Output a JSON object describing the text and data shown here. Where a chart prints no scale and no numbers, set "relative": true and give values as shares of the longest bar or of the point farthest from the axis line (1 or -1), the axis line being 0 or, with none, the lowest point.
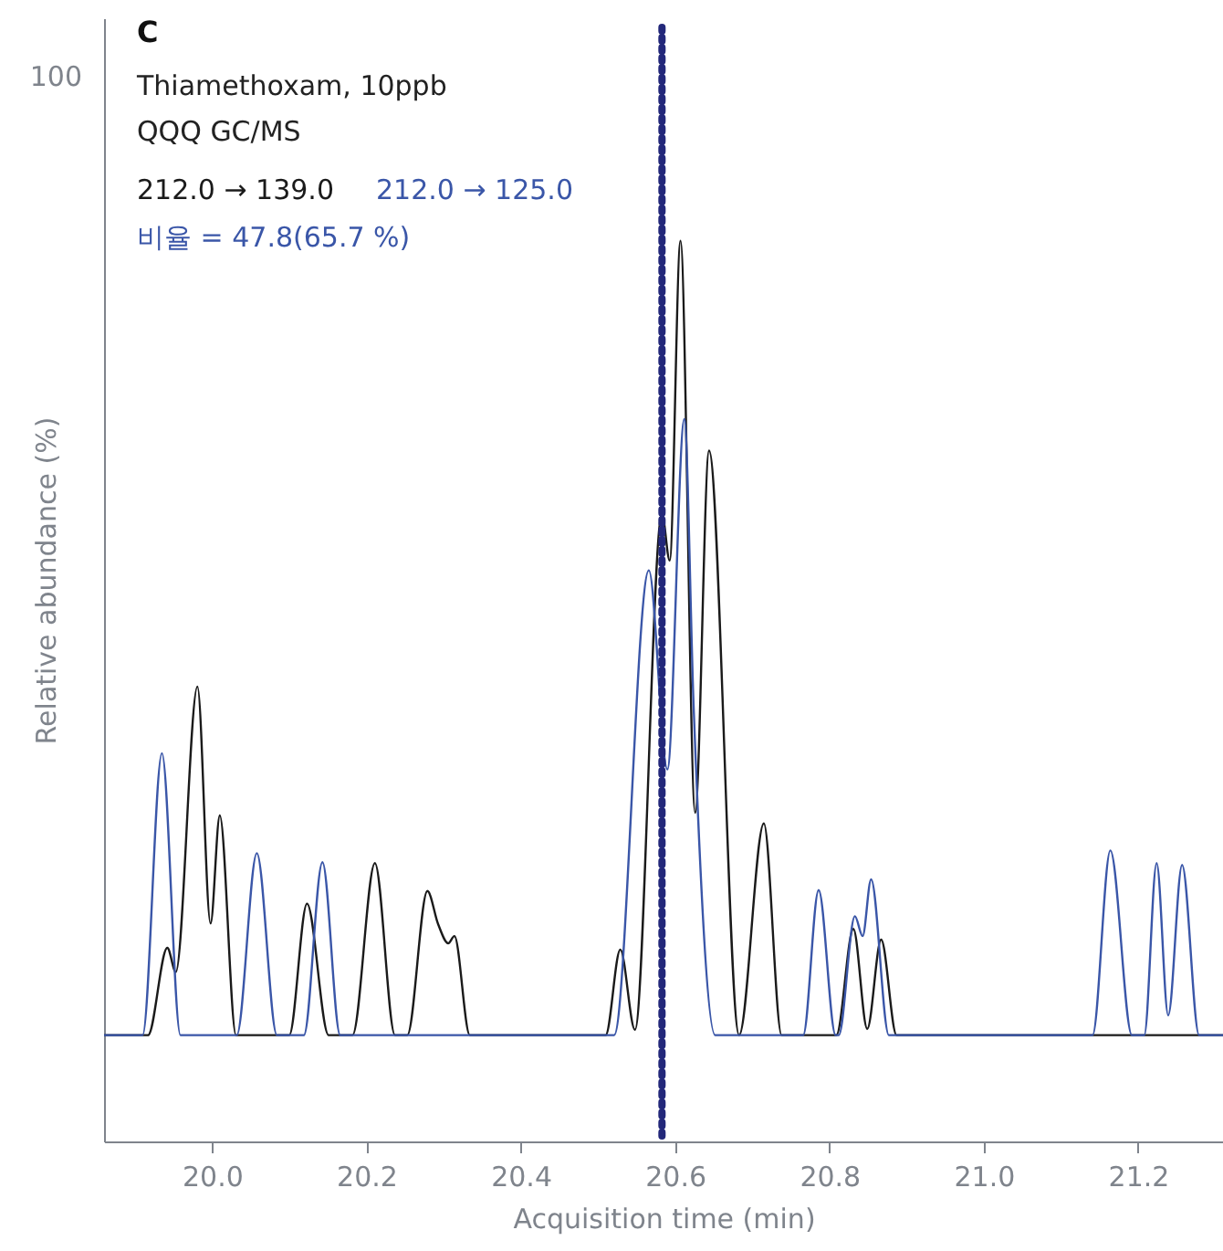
{
  "chart_data": {
    "type": "line",
    "title": "C",
    "xlabel": "Acquisition time (min)",
    "ylabel": "Relative abundance (%)",
    "relative": true,
    "annotations": [
      "100",
      "Thiamethoxam, 10ppb",
      "QQQ GC/MS",
      "비율 = 47.8(65.7 %)"
    ],
    "xlim": [
      19.86,
      21.31
    ],
    "xticks": [
      {
        "value": 20,
        "label": "20.0"
      },
      {
        "value": 20.2,
        "label": "20.2"
      },
      {
        "value": 20.4,
        "label": "20.4"
      },
      {
        "value": 20.6,
        "label": "20.6"
      },
      {
        "value": 20.8,
        "label": "20.8"
      },
      {
        "value": 21,
        "label": "21.0"
      },
      {
        "value": 21.2,
        "label": "21.2"
      }
    ],
    "grid": false,
    "marker": "none",
    "line_style": "solid",
    "ref_lines": [
      {
        "axis": "x",
        "value": 20.583,
        "color": "#23287a",
        "line_style": "dotted"
      }
    ],
    "series": [
      {
        "name": "212.0 → 139.0",
        "color": "#1a1a1a",
        "x": [
          19.86,
          19.917,
          19.942,
          19.953,
          19.981,
          19.998,
          20.01,
          20.031,
          20.1,
          20.123,
          20.151,
          20.182,
          20.211,
          20.237,
          20.253,
          20.279,
          20.293,
          20.306,
          20.314,
          20.334,
          20.51,
          20.529,
          20.548,
          20.583,
          20.593,
          20.607,
          20.626,
          20.644,
          20.683,
          20.715,
          20.738,
          20.809,
          20.831,
          20.849,
          20.867,
          20.887,
          21.31
        ],
        "values": [
          0.118,
          0.118,
          0.215,
          0.188,
          0.505,
          0.242,
          0.362,
          0.118,
          0.118,
          0.264,
          0.118,
          0.118,
          0.309,
          0.118,
          0.118,
          0.278,
          0.241,
          0.22,
          0.228,
          0.118,
          0.118,
          0.213,
          0.124,
          0.697,
          0.645,
          1.0,
          0.365,
          0.767,
          0.118,
          0.353,
          0.118,
          0.118,
          0.236,
          0.125,
          0.224,
          0.118,
          0.118
        ]
      },
      {
        "name": "212.0 → 125.0",
        "color": "#3a56a8",
        "x": [
          19.86,
          19.91,
          19.935,
          19.959,
          20.032,
          20.058,
          20.084,
          20.119,
          20.143,
          20.166,
          20.521,
          20.566,
          20.59,
          20.612,
          20.624,
          20.652,
          20.766,
          20.786,
          20.808,
          20.812,
          20.833,
          20.843,
          20.854,
          20.877,
          21.141,
          21.164,
          21.192,
          21.208,
          21.224,
          21.239,
          21.257,
          21.279,
          21.31
        ],
        "values": [
          0.118,
          0.118,
          0.431,
          0.118,
          0.118,
          0.32,
          0.118,
          0.118,
          0.31,
          0.118,
          0.118,
          0.634,
          0.413,
          0.802,
          0.483,
          0.118,
          0.118,
          0.279,
          0.118,
          0.118,
          0.25,
          0.228,
          0.291,
          0.118,
          0.118,
          0.323,
          0.118,
          0.118,
          0.309,
          0.14,
          0.307,
          0.118,
          0.118
        ]
      }
    ]
  }
}
